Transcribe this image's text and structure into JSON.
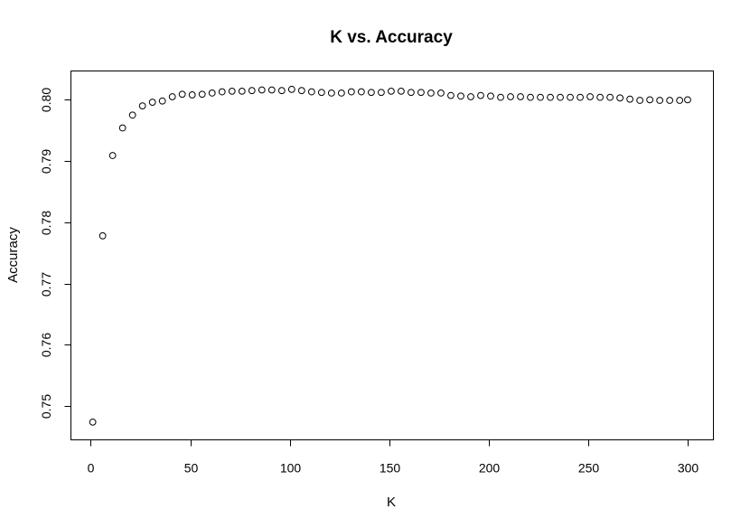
{
  "chart_data": {
    "type": "scatter",
    "title": "K vs. Accuracy",
    "xlabel": "K",
    "ylabel": "Accuracy",
    "xlim": [
      -9.96,
      312.96
    ],
    "ylim": [
      0.7445,
      0.8047
    ],
    "xticks": [
      0,
      50,
      100,
      150,
      200,
      250,
      300
    ],
    "yticks": [
      0.75,
      0.76,
      0.77,
      0.78,
      0.79,
      0.8
    ],
    "ytick_labels": [
      "0.75",
      "0.76",
      "0.77",
      "0.78",
      "0.79",
      "0.80"
    ],
    "grid": false,
    "series": [
      {
        "x": [
          1,
          6,
          11,
          16,
          21,
          26,
          31,
          36,
          41,
          46,
          51,
          56,
          61,
          66,
          71,
          76,
          81,
          86,
          91,
          96,
          101,
          106,
          111,
          116,
          121,
          126,
          131,
          136,
          141,
          146,
          151,
          156,
          161,
          166,
          171,
          176,
          181,
          186,
          191,
          196,
          201,
          206,
          211,
          216,
          221,
          226,
          231,
          236,
          241,
          246,
          251,
          256,
          261,
          266,
          271,
          276,
          281,
          286,
          291,
          296,
          300
        ],
        "y": [
          0.7474,
          0.7778,
          0.7909,
          0.7954,
          0.7975,
          0.799,
          0.7996,
          0.7998,
          0.8005,
          0.8009,
          0.8008,
          0.8009,
          0.8011,
          0.8013,
          0.8014,
          0.8014,
          0.8015,
          0.8016,
          0.8016,
          0.8015,
          0.8017,
          0.8015,
          0.8013,
          0.8012,
          0.8011,
          0.8011,
          0.8013,
          0.8013,
          0.8012,
          0.8012,
          0.8014,
          0.8014,
          0.8012,
          0.8012,
          0.8011,
          0.8011,
          0.8007,
          0.8006,
          0.8005,
          0.8007,
          0.8006,
          0.8004,
          0.8005,
          0.8005,
          0.8004,
          0.8004,
          0.8004,
          0.8004,
          0.8004,
          0.8004,
          0.8005,
          0.8004,
          0.8004,
          0.8003,
          0.8001,
          0.7999,
          0.8,
          0.7999,
          0.7999,
          0.7999,
          0.8
        ]
      }
    ]
  }
}
